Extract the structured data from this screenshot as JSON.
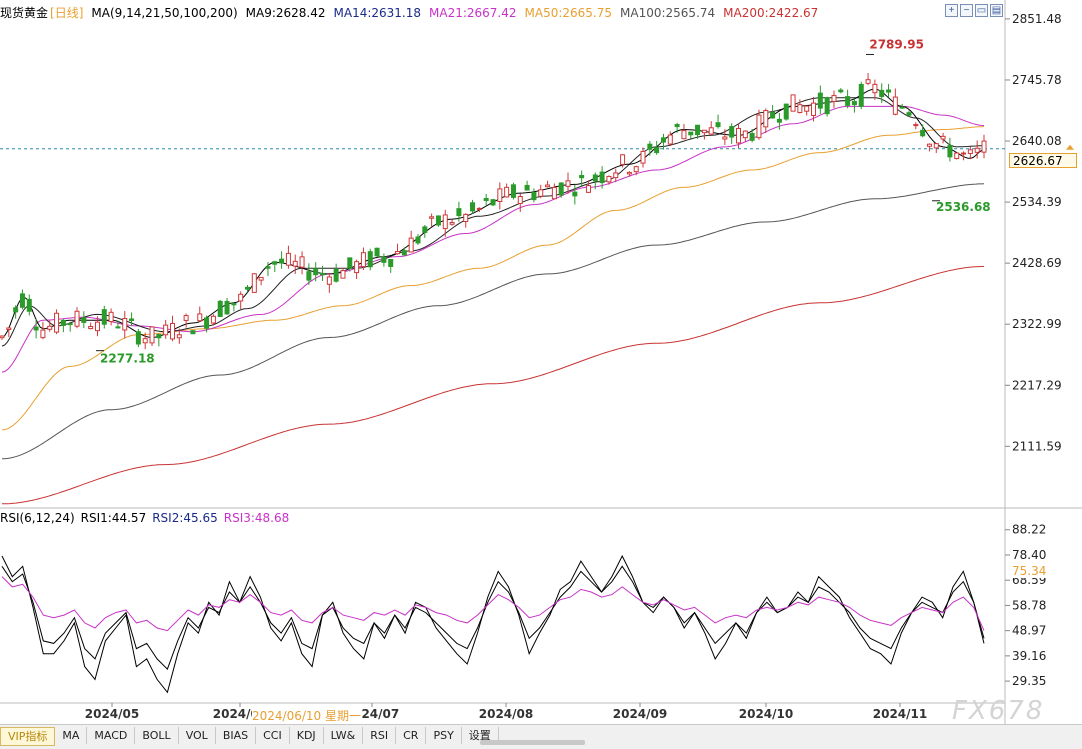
{
  "header": {
    "symbol": "现货黄金",
    "period": "[日线]",
    "ma_label": "MA(9,14,21,50,100,200)",
    "ma9": "MA9:2628.42",
    "ma14": "MA14:2631.18",
    "ma21": "MA21:2667.42",
    "ma50": "MA50:2665.75",
    "ma100": "MA100:2565.74",
    "ma200": "MA200:2422.67"
  },
  "rsi_header": {
    "label": "RSI(6,12,24)",
    "rsi1": "RSI1:44.57",
    "rsi2": "RSI2:45.65",
    "rsi3": "RSI3:48.68"
  },
  "price_tag": "2626.67",
  "rsi_tag": "75.34",
  "date_tip": "2024/06/10 星期一",
  "watermark": "FX678",
  "tabs": [
    "VIP指标",
    "MA",
    "MACD",
    "BOLL",
    "VOL",
    "BIAS",
    "CCI",
    "KDJ",
    "LW&",
    "RSI",
    "CR",
    "PSY",
    "设置"
  ],
  "colors": {
    "up": "#d03838",
    "down": "#2a9a2a",
    "ma9": "#000000",
    "ma14": "#222222",
    "ma21": "#c832c8",
    "ma50": "#e8a030",
    "ma100": "#555555",
    "ma200": "#c83232",
    "rsi1": "#000000",
    "rsi2": "#000000",
    "rsi3": "#c832c8"
  },
  "chart_data": [
    {
      "type": "candlestick",
      "y_ticks": [
        "2851.48",
        "2745.78",
        "2640.08",
        "2534.39",
        "2428.69",
        "2322.99",
        "2217.29",
        "2111.59"
      ],
      "ylim": [
        2010,
        2860
      ],
      "x_ticks": [
        "2024/05",
        "2024/06",
        "2024/07",
        "2024/08",
        "2024/09",
        "2024/10",
        "2024/11"
      ],
      "annotations": [
        {
          "text": "2789.95",
          "value": 2789.95
        },
        {
          "text": "2536.68",
          "value": 2536.68
        },
        {
          "text": "2277.18",
          "value": 2277.18
        }
      ],
      "last_price": 2626.67,
      "ma_anchors": {
        "ma9": [
          [
            0,
            2300
          ],
          [
            8,
            2370
          ],
          [
            15,
            2315
          ],
          [
            25,
            2330
          ],
          [
            40,
            2330
          ],
          [
            55,
            2300
          ],
          [
            70,
            2325
          ],
          [
            85,
            2360
          ],
          [
            100,
            2430
          ],
          [
            120,
            2410
          ],
          [
            140,
            2440
          ],
          [
            165,
            2505
          ],
          [
            190,
            2550
          ],
          [
            210,
            2565
          ],
          [
            230,
            2600
          ],
          [
            250,
            2660
          ],
          [
            270,
            2650
          ],
          [
            290,
            2700
          ],
          [
            310,
            2710
          ],
          [
            320,
            2730
          ],
          [
            330,
            2700
          ],
          [
            345,
            2630
          ],
          [
            355,
            2610
          ],
          [
            360,
            2625
          ]
        ],
        "ma14": [
          [
            0,
            2285
          ],
          [
            10,
            2355
          ],
          [
            20,
            2320
          ],
          [
            35,
            2340
          ],
          [
            60,
            2310
          ],
          [
            75,
            2320
          ],
          [
            90,
            2350
          ],
          [
            110,
            2420
          ],
          [
            130,
            2420
          ],
          [
            150,
            2450
          ],
          [
            175,
            2510
          ],
          [
            200,
            2545
          ],
          [
            220,
            2570
          ],
          [
            240,
            2630
          ],
          [
            260,
            2650
          ],
          [
            280,
            2690
          ],
          [
            300,
            2715
          ],
          [
            320,
            2715
          ],
          [
            335,
            2680
          ],
          [
            350,
            2630
          ],
          [
            360,
            2632
          ]
        ],
        "ma21": [
          [
            0,
            2240
          ],
          [
            15,
            2330
          ],
          [
            30,
            2335
          ],
          [
            50,
            2320
          ],
          [
            70,
            2310
          ],
          [
            95,
            2340
          ],
          [
            120,
            2410
          ],
          [
            145,
            2440
          ],
          [
            170,
            2480
          ],
          [
            195,
            2530
          ],
          [
            215,
            2560
          ],
          [
            240,
            2590
          ],
          [
            265,
            2630
          ],
          [
            290,
            2670
          ],
          [
            310,
            2700
          ],
          [
            330,
            2700
          ],
          [
            345,
            2685
          ],
          [
            360,
            2667
          ]
        ],
        "ma50": [
          [
            0,
            2140
          ],
          [
            25,
            2250
          ],
          [
            50,
            2305
          ],
          [
            75,
            2315
          ],
          [
            100,
            2330
          ],
          [
            125,
            2355
          ],
          [
            150,
            2390
          ],
          [
            175,
            2420
          ],
          [
            200,
            2460
          ],
          [
            225,
            2520
          ],
          [
            250,
            2560
          ],
          [
            275,
            2590
          ],
          [
            300,
            2620
          ],
          [
            325,
            2650
          ],
          [
            345,
            2660
          ],
          [
            360,
            2665
          ]
        ],
        "ma100": [
          [
            0,
            2090
          ],
          [
            40,
            2175
          ],
          [
            80,
            2235
          ],
          [
            120,
            2300
          ],
          [
            160,
            2355
          ],
          [
            200,
            2410
          ],
          [
            240,
            2460
          ],
          [
            280,
            2500
          ],
          [
            320,
            2540
          ],
          [
            360,
            2566
          ]
        ],
        "ma200": [
          [
            0,
            2012
          ],
          [
            60,
            2080
          ],
          [
            120,
            2150
          ],
          [
            180,
            2220
          ],
          [
            240,
            2290
          ],
          [
            300,
            2360
          ],
          [
            360,
            2423
          ]
        ]
      }
    },
    {
      "type": "line",
      "title": "RSI(6,12,24)",
      "y_ticks": [
        "88.22",
        "78.40",
        "68.59",
        "58.78",
        "48.97",
        "39.16",
        "29.35"
      ],
      "ylim": [
        22,
        92
      ],
      "series": [
        {
          "name": "RSI1",
          "values": [
            78,
            70,
            74,
            58,
            40,
            40,
            45,
            52,
            35,
            30,
            45,
            50,
            55,
            35,
            38,
            30,
            25,
            40,
            52,
            48,
            60,
            55,
            68,
            60,
            70,
            62,
            50,
            45,
            52,
            40,
            35,
            55,
            60,
            48,
            42,
            38,
            52,
            46,
            55,
            48,
            60,
            58,
            50,
            45,
            40,
            36,
            48,
            62,
            72,
            66,
            55,
            40,
            48,
            55,
            65,
            68,
            76,
            70,
            64,
            70,
            78,
            70,
            60,
            56,
            62,
            58,
            50,
            56,
            48,
            38,
            44,
            52,
            46,
            56,
            62,
            56,
            58,
            64,
            60,
            70,
            66,
            62,
            54,
            48,
            42,
            40,
            36,
            48,
            56,
            62,
            60,
            54,
            66,
            72,
            60,
            44
          ]
        },
        {
          "name": "RSI2",
          "values": [
            74,
            68,
            71,
            60,
            45,
            44,
            48,
            54,
            42,
            38,
            48,
            52,
            56,
            42,
            44,
            38,
            34,
            45,
            54,
            50,
            58,
            56,
            64,
            60,
            66,
            60,
            52,
            48,
            54,
            44,
            42,
            55,
            58,
            50,
            46,
            44,
            52,
            48,
            55,
            50,
            58,
            56,
            52,
            48,
            44,
            42,
            50,
            60,
            68,
            64,
            56,
            46,
            50,
            56,
            62,
            66,
            72,
            68,
            64,
            68,
            74,
            68,
            60,
            58,
            62,
            58,
            52,
            56,
            50,
            44,
            48,
            52,
            48,
            56,
            60,
            56,
            58,
            62,
            60,
            66,
            64,
            60,
            56,
            50,
            46,
            44,
            42,
            50,
            56,
            60,
            58,
            56,
            64,
            68,
            60,
            46
          ]
        },
        {
          "name": "RSI3",
          "values": [
            70,
            66,
            67,
            62,
            55,
            54,
            55,
            57,
            52,
            50,
            54,
            56,
            57,
            52,
            53,
            50,
            49,
            53,
            57,
            55,
            59,
            58,
            61,
            60,
            63,
            60,
            56,
            55,
            57,
            53,
            52,
            56,
            58,
            55,
            54,
            53,
            56,
            55,
            57,
            55,
            59,
            58,
            56,
            55,
            53,
            52,
            55,
            59,
            63,
            61,
            58,
            54,
            55,
            58,
            61,
            62,
            65,
            64,
            62,
            63,
            66,
            63,
            60,
            59,
            61,
            59,
            57,
            58,
            55,
            52,
            54,
            55,
            54,
            57,
            58,
            57,
            58,
            60,
            59,
            62,
            61,
            60,
            58,
            55,
            53,
            52,
            51,
            54,
            56,
            58,
            57,
            56,
            60,
            62,
            58,
            49
          ]
        }
      ],
      "series_values_estimated": true
    }
  ]
}
